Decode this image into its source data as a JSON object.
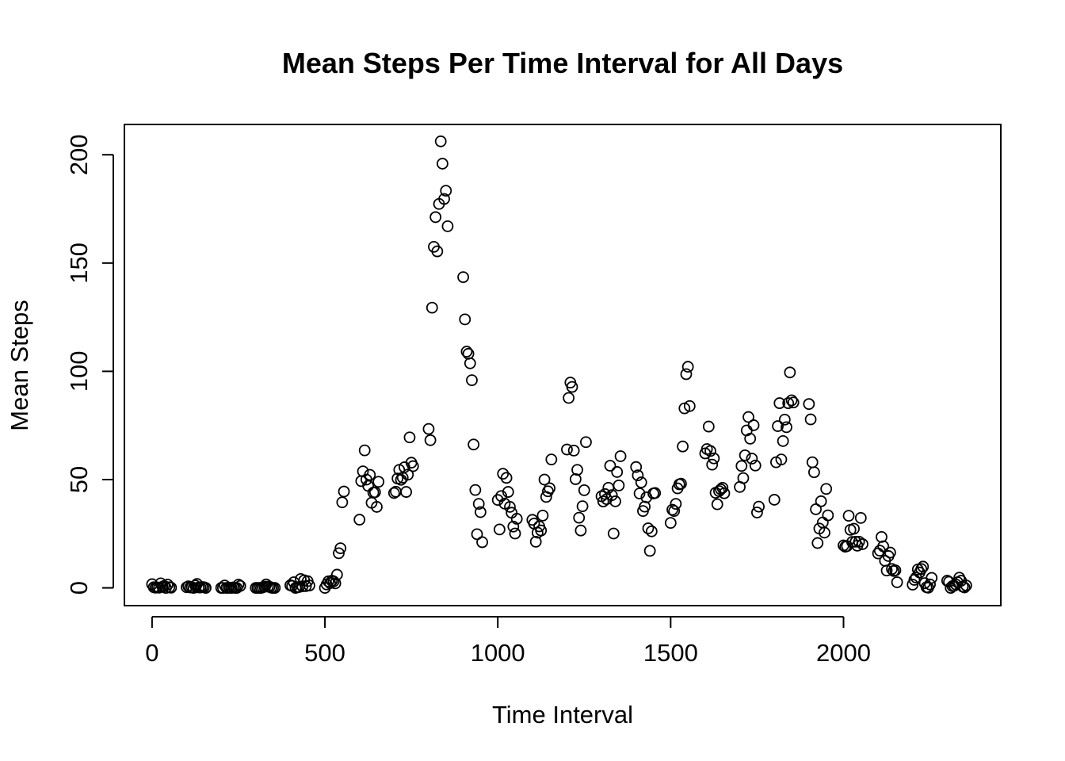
{
  "chart_data": {
    "type": "scatter",
    "title": "Mean Steps Per Time Interval for All Days",
    "xlabel": "Time Interval",
    "ylabel": "Mean Steps",
    "xlim": [
      -80,
      2455
    ],
    "ylim": [
      -8.2,
      214
    ],
    "xticks": [
      0,
      500,
      1000,
      1500,
      2000
    ],
    "yticks": [
      0,
      50,
      100,
      150,
      200
    ],
    "grid": false,
    "colors": {
      "points": "#000000",
      "background": "#ffffff"
    },
    "points": [
      [
        0,
        1.7
      ],
      [
        5,
        0.3
      ],
      [
        10,
        0.1
      ],
      [
        15,
        0.2
      ],
      [
        20,
        0.1
      ],
      [
        25,
        2.1
      ],
      [
        30,
        0.5
      ],
      [
        35,
        0.9
      ],
      [
        40,
        0
      ],
      [
        45,
        1.5
      ],
      [
        50,
        0.3
      ],
      [
        55,
        0.1
      ],
      [
        100,
        0.3
      ],
      [
        105,
        0.7
      ],
      [
        110,
        0.2
      ],
      [
        115,
        0.3
      ],
      [
        120,
        0
      ],
      [
        125,
        1.1
      ],
      [
        130,
        1.8
      ],
      [
        135,
        0.2
      ],
      [
        140,
        0.2
      ],
      [
        145,
        0.4
      ],
      [
        150,
        0.3
      ],
      [
        155,
        0
      ],
      [
        200,
        0
      ],
      [
        205,
        0
      ],
      [
        210,
        1.1
      ],
      [
        215,
        0
      ],
      [
        220,
        0
      ],
      [
        225,
        0.1
      ],
      [
        230,
        0
      ],
      [
        235,
        0.2
      ],
      [
        240,
        0
      ],
      [
        245,
        0
      ],
      [
        250,
        1.5
      ],
      [
        255,
        0.9
      ],
      [
        300,
        0
      ],
      [
        305,
        0
      ],
      [
        310,
        0
      ],
      [
        315,
        0
      ],
      [
        320,
        0.2
      ],
      [
        325,
        0.6
      ],
      [
        330,
        1.6
      ],
      [
        335,
        0.6
      ],
      [
        340,
        0.5
      ],
      [
        345,
        0.1
      ],
      [
        350,
        0
      ],
      [
        355,
        0
      ],
      [
        400,
        1.2
      ],
      [
        405,
        0.9
      ],
      [
        410,
        2.6
      ],
      [
        415,
        0
      ],
      [
        420,
        0.3
      ],
      [
        425,
        0.4
      ],
      [
        430,
        4.1
      ],
      [
        435,
        0.7
      ],
      [
        440,
        3.5
      ],
      [
        445,
        0.8
      ],
      [
        450,
        3.1
      ],
      [
        455,
        1.1
      ],
      [
        500,
        0
      ],
      [
        505,
        1.6
      ],
      [
        510,
        3
      ],
      [
        515,
        2.2
      ],
      [
        520,
        3.3
      ],
      [
        525,
        3
      ],
      [
        530,
        2.1
      ],
      [
        535,
        6.1
      ],
      [
        540,
        16
      ],
      [
        545,
        18.3
      ],
      [
        550,
        39.5
      ],
      [
        555,
        44.5
      ],
      [
        600,
        31.5
      ],
      [
        605,
        49.3
      ],
      [
        610,
        53.8
      ],
      [
        615,
        63.5
      ],
      [
        620,
        50
      ],
      [
        625,
        47.1
      ],
      [
        630,
        52.2
      ],
      [
        635,
        39.3
      ],
      [
        640,
        44
      ],
      [
        645,
        44.2
      ],
      [
        650,
        37.4
      ],
      [
        655,
        49
      ],
      [
        700,
        43.8
      ],
      [
        705,
        44.4
      ],
      [
        710,
        50.5
      ],
      [
        715,
        54.5
      ],
      [
        720,
        49.9
      ],
      [
        725,
        50.9
      ],
      [
        730,
        55.7
      ],
      [
        735,
        44.3
      ],
      [
        740,
        52.3
      ],
      [
        745,
        69.5
      ],
      [
        750,
        57.8
      ],
      [
        755,
        56.2
      ],
      [
        800,
        73.4
      ],
      [
        805,
        68.2
      ],
      [
        810,
        129.4
      ],
      [
        815,
        157.5
      ],
      [
        820,
        171.2
      ],
      [
        825,
        155.4
      ],
      [
        830,
        177.3
      ],
      [
        835,
        206.2
      ],
      [
        840,
        195.9
      ],
      [
        845,
        179.6
      ],
      [
        850,
        183.4
      ],
      [
        855,
        167
      ],
      [
        900,
        143.5
      ],
      [
        905,
        124
      ],
      [
        910,
        109.1
      ],
      [
        915,
        108.1
      ],
      [
        920,
        103.7
      ],
      [
        925,
        95.9
      ],
      [
        930,
        66.2
      ],
      [
        935,
        45.2
      ],
      [
        940,
        24.8
      ],
      [
        945,
        38.8
      ],
      [
        950,
        34.98
      ],
      [
        955,
        21.1
      ],
      [
        1000,
        40.6
      ],
      [
        1005,
        26.98
      ],
      [
        1010,
        42.4
      ],
      [
        1015,
        52.7
      ],
      [
        1020,
        38.9
      ],
      [
        1025,
        50.8
      ],
      [
        1030,
        44.3
      ],
      [
        1035,
        37.4
      ],
      [
        1040,
        34.7
      ],
      [
        1045,
        28.3
      ],
      [
        1050,
        25.1
      ],
      [
        1055,
        31.9
      ],
      [
        1100,
        31.4
      ],
      [
        1105,
        29.7
      ],
      [
        1110,
        21.3
      ],
      [
        1115,
        25.5
      ],
      [
        1120,
        28.4
      ],
      [
        1125,
        26.5
      ],
      [
        1130,
        33.4
      ],
      [
        1135,
        50
      ],
      [
        1140,
        42
      ],
      [
        1145,
        44.6
      ],
      [
        1150,
        46
      ],
      [
        1155,
        59.3
      ],
      [
        1200,
        63.9
      ],
      [
        1205,
        87.7
      ],
      [
        1210,
        94.8
      ],
      [
        1215,
        92.8
      ],
      [
        1220,
        63.4
      ],
      [
        1225,
        50.2
      ],
      [
        1230,
        54.5
      ],
      [
        1235,
        32.4
      ],
      [
        1240,
        26.5
      ],
      [
        1245,
        37.7
      ],
      [
        1250,
        45.1
      ],
      [
        1255,
        67.3
      ],
      [
        1300,
        42.3
      ],
      [
        1305,
        39.9
      ],
      [
        1310,
        43.3
      ],
      [
        1315,
        40.98
      ],
      [
        1320,
        46.2
      ],
      [
        1325,
        56.4
      ],
      [
        1330,
        42.8
      ],
      [
        1335,
        25.1
      ],
      [
        1340,
        39.96
      ],
      [
        1345,
        53.5
      ],
      [
        1350,
        47.3
      ],
      [
        1355,
        60.8
      ],
      [
        1400,
        55.8
      ],
      [
        1405,
        51.96
      ],
      [
        1410,
        43.6
      ],
      [
        1415,
        48.7
      ],
      [
        1420,
        35.5
      ],
      [
        1425,
        37.5
      ],
      [
        1430,
        41.8
      ],
      [
        1435,
        27.5
      ],
      [
        1440,
        17.1
      ],
      [
        1445,
        26.1
      ],
      [
        1450,
        43.6
      ],
      [
        1455,
        43.8
      ],
      [
        1500,
        30
      ],
      [
        1505,
        36.1
      ],
      [
        1510,
        35.5
      ],
      [
        1515,
        38.8
      ],
      [
        1520,
        45.96
      ],
      [
        1525,
        47.8
      ],
      [
        1530,
        48.1
      ],
      [
        1535,
        65.3
      ],
      [
        1540,
        82.9
      ],
      [
        1545,
        98.7
      ],
      [
        1550,
        102.1
      ],
      [
        1555,
        83.96
      ],
      [
        1600,
        62.1
      ],
      [
        1605,
        64.1
      ],
      [
        1610,
        74.5
      ],
      [
        1615,
        63.2
      ],
      [
        1620,
        56.9
      ],
      [
        1625,
        59.8
      ],
      [
        1630,
        43.9
      ],
      [
        1635,
        38.6
      ],
      [
        1640,
        44.7
      ],
      [
        1645,
        45.5
      ],
      [
        1650,
        46.2
      ],
      [
        1655,
        43.7
      ],
      [
        1700,
        46.6
      ],
      [
        1705,
        56.3
      ],
      [
        1710,
        50.7
      ],
      [
        1715,
        61.2
      ],
      [
        1720,
        72.7
      ],
      [
        1725,
        78.9
      ],
      [
        1730,
        68.9
      ],
      [
        1735,
        59.7
      ],
      [
        1740,
        75.1
      ],
      [
        1745,
        56.5
      ],
      [
        1750,
        34.8
      ],
      [
        1755,
        37.5
      ],
      [
        1800,
        40.7
      ],
      [
        1805,
        58
      ],
      [
        1810,
        74.7
      ],
      [
        1815,
        85.3
      ],
      [
        1820,
        59.3
      ],
      [
        1825,
        67.8
      ],
      [
        1830,
        77.7
      ],
      [
        1835,
        74.2
      ],
      [
        1840,
        85.3
      ],
      [
        1845,
        99.5
      ],
      [
        1850,
        86.6
      ],
      [
        1855,
        85.6
      ],
      [
        1900,
        84.9
      ],
      [
        1905,
        77.8
      ],
      [
        1910,
        58
      ],
      [
        1915,
        53.4
      ],
      [
        1920,
        36.3
      ],
      [
        1925,
        20.7
      ],
      [
        1930,
        27.4
      ],
      [
        1935,
        40
      ],
      [
        1940,
        30.2
      ],
      [
        1945,
        25.5
      ],
      [
        1950,
        45.7
      ],
      [
        1955,
        33.5
      ],
      [
        2000,
        19.6
      ],
      [
        2005,
        19
      ],
      [
        2010,
        19.3
      ],
      [
        2015,
        33.3
      ],
      [
        2020,
        26.8
      ],
      [
        2025,
        21.2
      ],
      [
        2030,
        27.3
      ],
      [
        2035,
        21.3
      ],
      [
        2040,
        19.5
      ],
      [
        2045,
        21.3
      ],
      [
        2050,
        32.3
      ],
      [
        2055,
        20.2
      ],
      [
        2100,
        15.9
      ],
      [
        2105,
        17.2
      ],
      [
        2110,
        23.5
      ],
      [
        2115,
        19.2
      ],
      [
        2120,
        12.5
      ],
      [
        2125,
        8
      ],
      [
        2130,
        14.7
      ],
      [
        2135,
        16.3
      ],
      [
        2140,
        8.7
      ],
      [
        2145,
        7.8
      ],
      [
        2150,
        8.1
      ],
      [
        2155,
        2.6
      ],
      [
        2200,
        1.5
      ],
      [
        2205,
        3.7
      ],
      [
        2210,
        4.8
      ],
      [
        2215,
        8.5
      ],
      [
        2220,
        7.1
      ],
      [
        2225,
        8.7
      ],
      [
        2230,
        9.8
      ],
      [
        2235,
        2.2
      ],
      [
        2240,
        0.3
      ],
      [
        2245,
        0.1
      ],
      [
        2250,
        1.6
      ],
      [
        2255,
        4.6
      ],
      [
        2300,
        3.3
      ],
      [
        2305,
        2.8
      ],
      [
        2310,
        0
      ],
      [
        2315,
        0.8
      ],
      [
        2320,
        1
      ],
      [
        2325,
        1.6
      ],
      [
        2330,
        2.6
      ],
      [
        2335,
        4.7
      ],
      [
        2340,
        3.3
      ],
      [
        2345,
        0.6
      ],
      [
        2350,
        0.2
      ],
      [
        2355,
        1.1
      ]
    ]
  }
}
